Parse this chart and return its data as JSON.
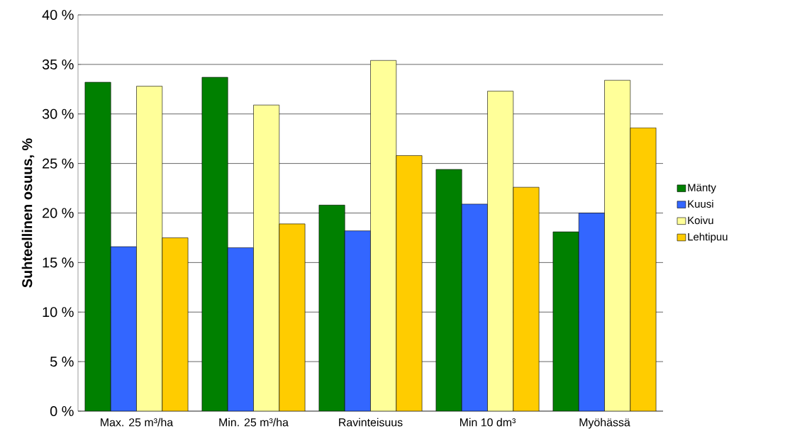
{
  "chart_data": {
    "type": "bar",
    "ylabel": "Suhteellinen osuus, %",
    "categories": [
      "Max. 25 m³/ha",
      "Min. 25 m³/ha",
      "Ravinteisuus",
      "Min 10 dm³",
      "Myöhässä"
    ],
    "series": [
      {
        "name": "Mänty",
        "color": "#008000",
        "values": [
          33.2,
          33.7,
          20.8,
          24.4,
          18.1
        ]
      },
      {
        "name": "Kuusi",
        "color": "#3366ff",
        "values": [
          16.6,
          16.5,
          18.2,
          20.9,
          20.0
        ]
      },
      {
        "name": "Koivu",
        "color": "#ffff99",
        "values": [
          32.8,
          30.9,
          35.4,
          32.3,
          33.4
        ]
      },
      {
        "name": "Lehtipuu",
        "color": "#ffcc00",
        "values": [
          17.5,
          18.9,
          25.8,
          22.6,
          28.6
        ]
      }
    ],
    "ylim": [
      0,
      40
    ],
    "yticks": [
      {
        "value": 0,
        "label": "0 %"
      },
      {
        "value": 5,
        "label": "5 %"
      },
      {
        "value": 10,
        "label": "10 %"
      },
      {
        "value": 15,
        "label": "15 %"
      },
      {
        "value": 20,
        "label": "20 %"
      },
      {
        "value": 25,
        "label": "25 %"
      },
      {
        "value": 30,
        "label": "30 %"
      },
      {
        "value": 35,
        "label": "35 %"
      },
      {
        "value": 40,
        "label": "40 %"
      }
    ],
    "grid": "y",
    "legend": "right"
  }
}
